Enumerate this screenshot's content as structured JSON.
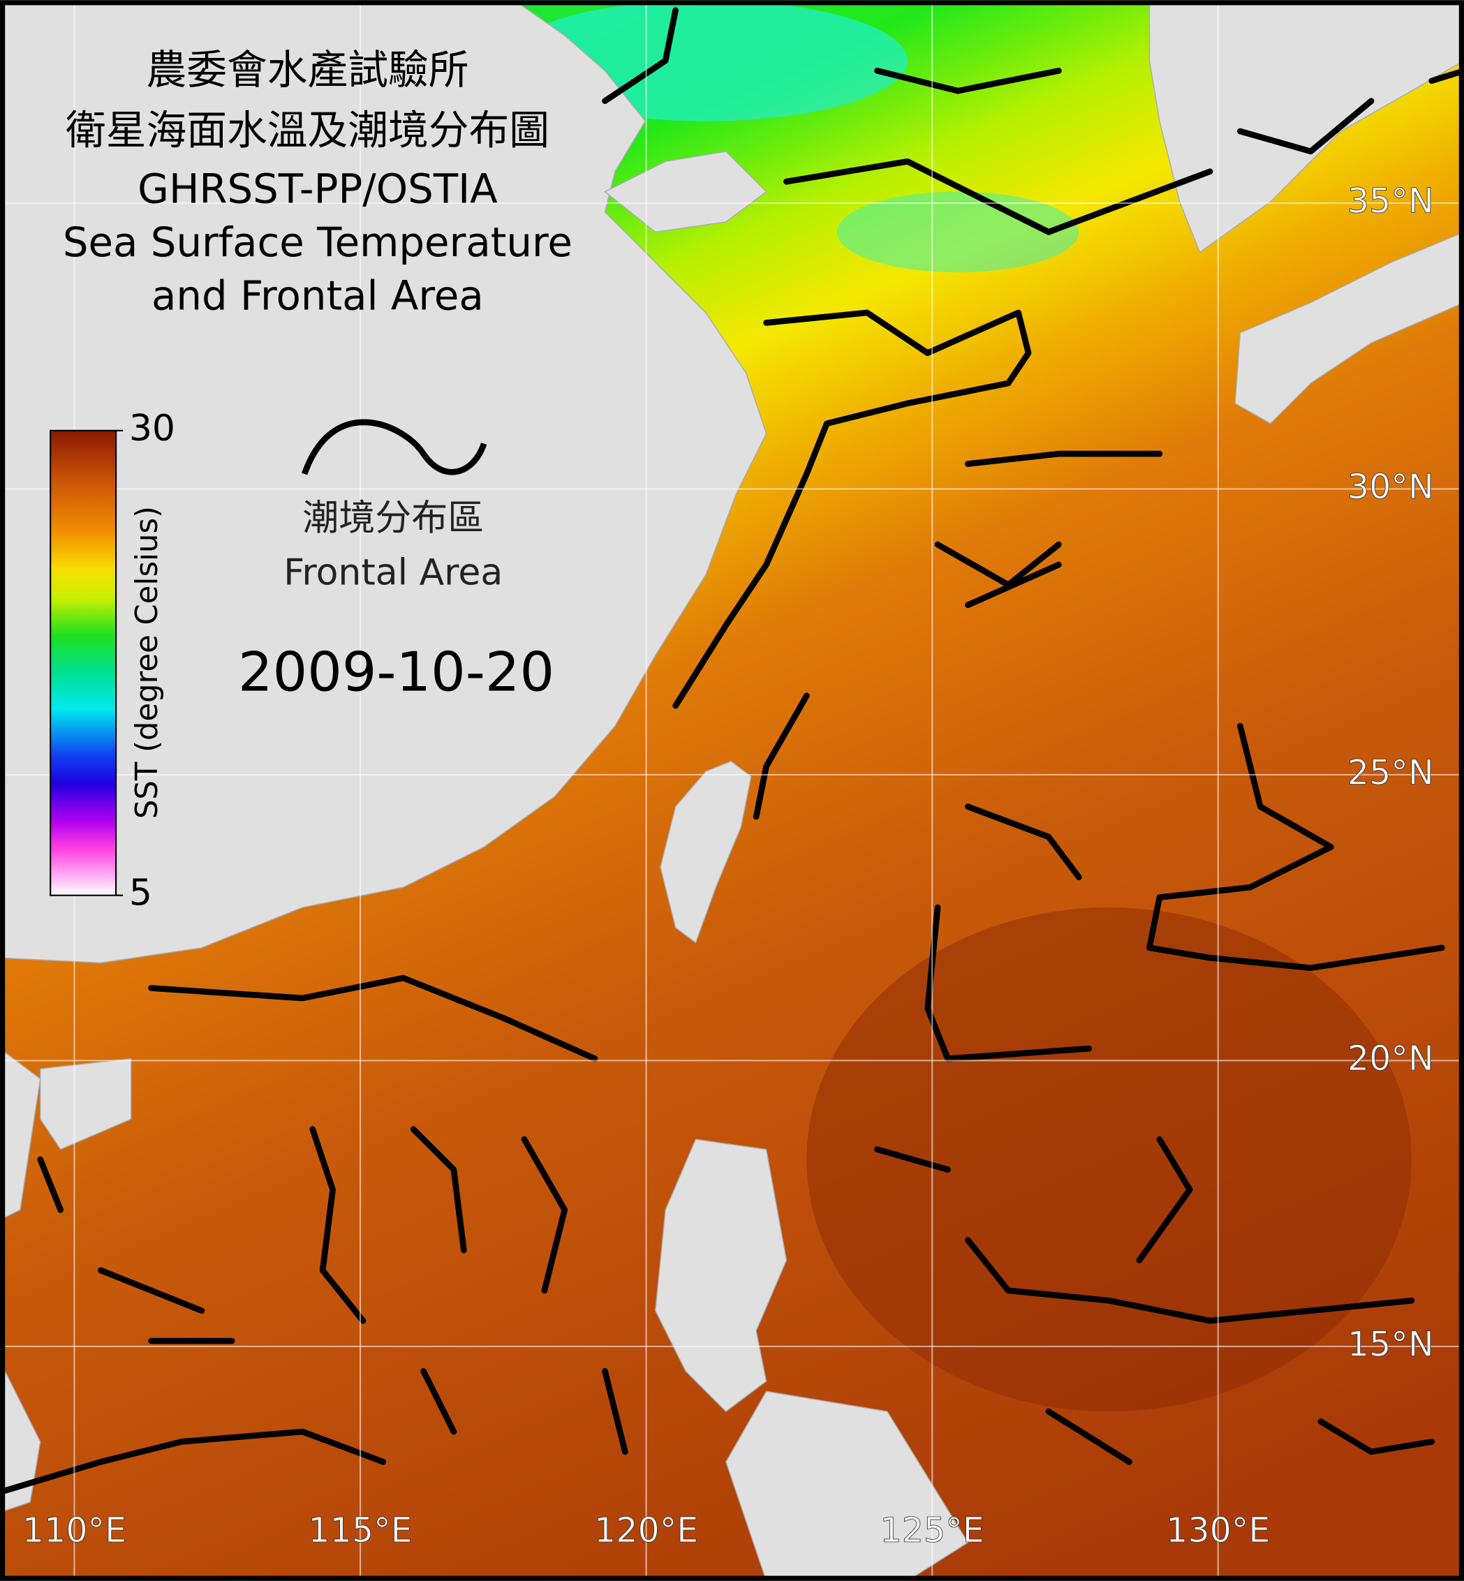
{
  "map": {
    "title_lines": [
      "農委會水產試驗所",
      "衛星海面水溫及潮境分布圖",
      "GHRSST-PP/OSTIA",
      "Sea Surface Temperature",
      "and Frontal Area"
    ],
    "legend": {
      "label_zh": "潮境分布區",
      "label_en": "Frontal Area"
    },
    "date": "2009-10-20",
    "colorbar": {
      "label": "SST (degree Celsius)",
      "range": [
        5,
        30
      ],
      "ticks": [
        30,
        5
      ]
    },
    "lon_range": [
      108.7,
      134.3
    ],
    "lat_range": [
      10.9,
      38.55
    ],
    "lon_ticks": [
      {
        "value": 110,
        "label": "110°E"
      },
      {
        "value": 115,
        "label": "115°E"
      },
      {
        "value": 120,
        "label": "120°E"
      },
      {
        "value": 125,
        "label": "125°E"
      },
      {
        "value": 130,
        "label": "130°E"
      }
    ],
    "lat_ticks": [
      {
        "value": 35,
        "label": "35°N"
      },
      {
        "value": 30,
        "label": "30°N"
      },
      {
        "value": 25,
        "label": "25°N"
      },
      {
        "value": 20,
        "label": "20°N"
      },
      {
        "value": 15,
        "label": "15°N"
      }
    ]
  }
}
